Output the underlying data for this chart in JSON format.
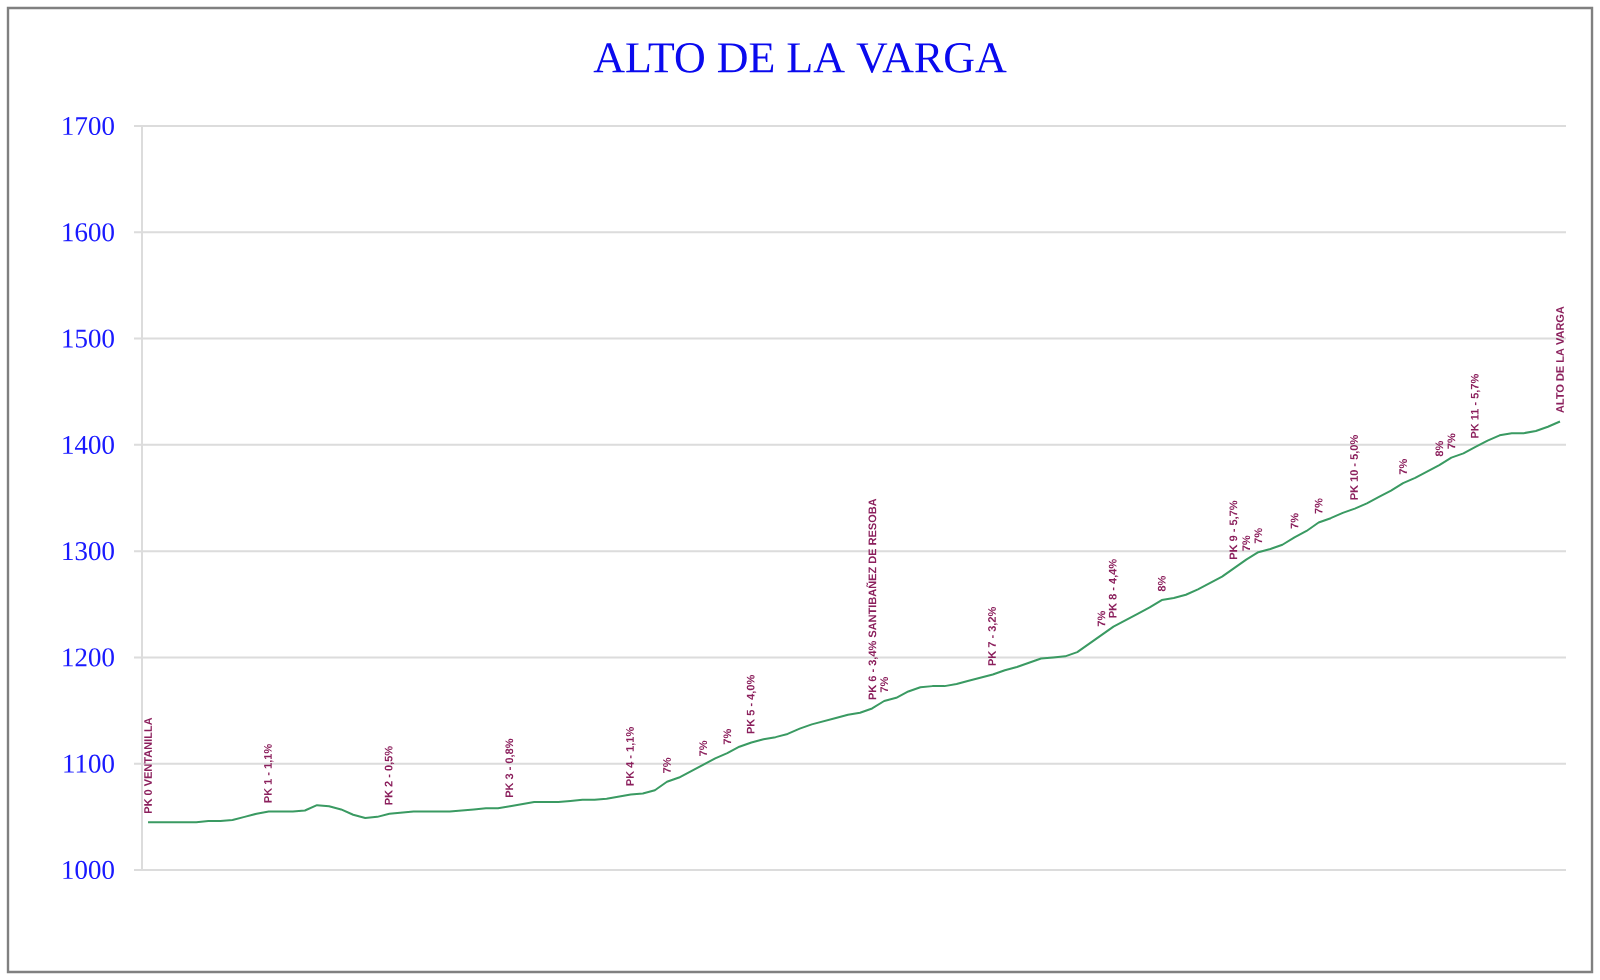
{
  "chart_data": {
    "type": "line",
    "title": "ALTO DE LA VARGA",
    "categories": [
      null,
      null,
      null,
      null,
      null,
      null,
      null,
      null,
      null,
      null,
      null,
      null,
      null,
      null,
      null,
      null,
      null,
      null,
      null,
      null,
      null,
      null,
      null,
      null,
      null,
      null,
      null,
      null,
      null,
      null,
      null,
      null,
      null,
      null,
      null,
      null,
      null,
      null,
      null,
      null,
      null,
      null,
      null,
      null,
      null,
      null,
      null,
      null,
      null,
      null,
      null,
      null,
      null,
      null,
      null,
      null,
      null,
      null,
      null,
      null,
      null,
      null,
      null,
      null,
      null,
      null,
      null,
      null,
      null,
      null,
      null,
      null,
      null,
      null,
      null,
      null,
      null,
      null,
      null,
      null,
      null,
      null,
      null,
      null,
      null,
      null,
      null,
      null,
      null,
      null,
      null,
      null,
      null,
      null,
      null,
      null,
      null,
      null,
      null,
      null,
      null,
      null,
      null,
      null,
      null,
      null,
      null,
      null,
      null,
      null,
      null,
      null,
      null,
      null,
      null,
      null,
      null,
      null
    ],
    "values": [
      1045,
      1045,
      1045,
      1045,
      1045,
      1046,
      1046,
      1047,
      1050,
      1053,
      1055,
      1055,
      1055,
      1056,
      1061,
      1060,
      1057,
      1052,
      1049,
      1050,
      1053,
      1054,
      1055,
      1055,
      1055,
      1055,
      1056,
      1057,
      1058,
      1058,
      1060,
      1062,
      1064,
      1064,
      1064,
      1065,
      1066,
      1066,
      1067,
      1069,
      1071,
      1072,
      1075,
      1083,
      1087,
      1093,
      1099,
      1105,
      1110,
      1116,
      1120,
      1123,
      1125,
      1128,
      1133,
      1137,
      1140,
      1143,
      1146,
      1148,
      1152,
      1159,
      1162,
      1168,
      1172,
      1173,
      1173,
      1175,
      1178,
      1181,
      1184,
      1188,
      1191,
      1195,
      1199,
      1200,
      1201,
      1205,
      1213,
      1221,
      1229,
      1235,
      1241,
      1247,
      1254,
      1256,
      1259,
      1264,
      1270,
      1276,
      1284,
      1292,
      1299,
      1302,
      1306,
      1313,
      1319,
      1327,
      1331,
      1336,
      1340,
      1345,
      1351,
      1357,
      1364,
      1369,
      1375,
      1381,
      1388,
      1392,
      1398,
      1404,
      1409,
      1411,
      1411,
      1413,
      1417,
      1422
    ],
    "color": "#3a9a62",
    "ylim": [
      1000,
      1700
    ],
    "yticks": [
      1000,
      1100,
      1200,
      1300,
      1400,
      1500,
      1600,
      1700
    ],
    "grid": "y",
    "annotations": [
      {
        "text": "PK 0  VENTANILLA",
        "y": 1045
      },
      {
        "text": "PK 1 - 1,1%",
        "y": 1055
      },
      {
        "text": "PK 2 - 0,5%",
        "y": 1053
      },
      {
        "text": "PK 3 - 0,8%",
        "y": 1060
      },
      {
        "text": "PK 4 - 1,1%",
        "y": 1071
      },
      {
        "text": "7%",
        "y": 1083
      },
      {
        "text": "7%",
        "y": 1099
      },
      {
        "text": "7%",
        "y": 1110
      },
      {
        "text": "PK 5 - 4,0%",
        "y": 1120
      },
      {
        "text": "PK 6 - 3,4%  SANTIBAÑEZ DE RESOBA",
        "y": 1152
      },
      {
        "text": "7%",
        "y": 1159
      },
      {
        "text": "PK 7 - 3,2%",
        "y": 1184
      },
      {
        "text": "7%",
        "y": 1221
      },
      {
        "text": "PK 8 - 4,4%",
        "y": 1229
      },
      {
        "text": "8%",
        "y": 1254
      },
      {
        "text": "PK 9 - 5,7%",
        "y": 1284
      },
      {
        "text": "7%",
        "y": 1292
      },
      {
        "text": "7%",
        "y": 1299
      },
      {
        "text": "7%",
        "y": 1313
      },
      {
        "text": "7%",
        "y": 1327
      },
      {
        "text": "PK 10 - 5,0%",
        "y": 1340
      },
      {
        "text": "7%",
        "y": 1364
      },
      {
        "text": "8%",
        "y": 1381
      },
      {
        "text": "7%",
        "y": 1388
      },
      {
        "text": "PK 11 - 5,7%",
        "y": 1398
      },
      {
        "text": "ALTO DE LA VARGA",
        "y": 1422
      }
    ]
  }
}
